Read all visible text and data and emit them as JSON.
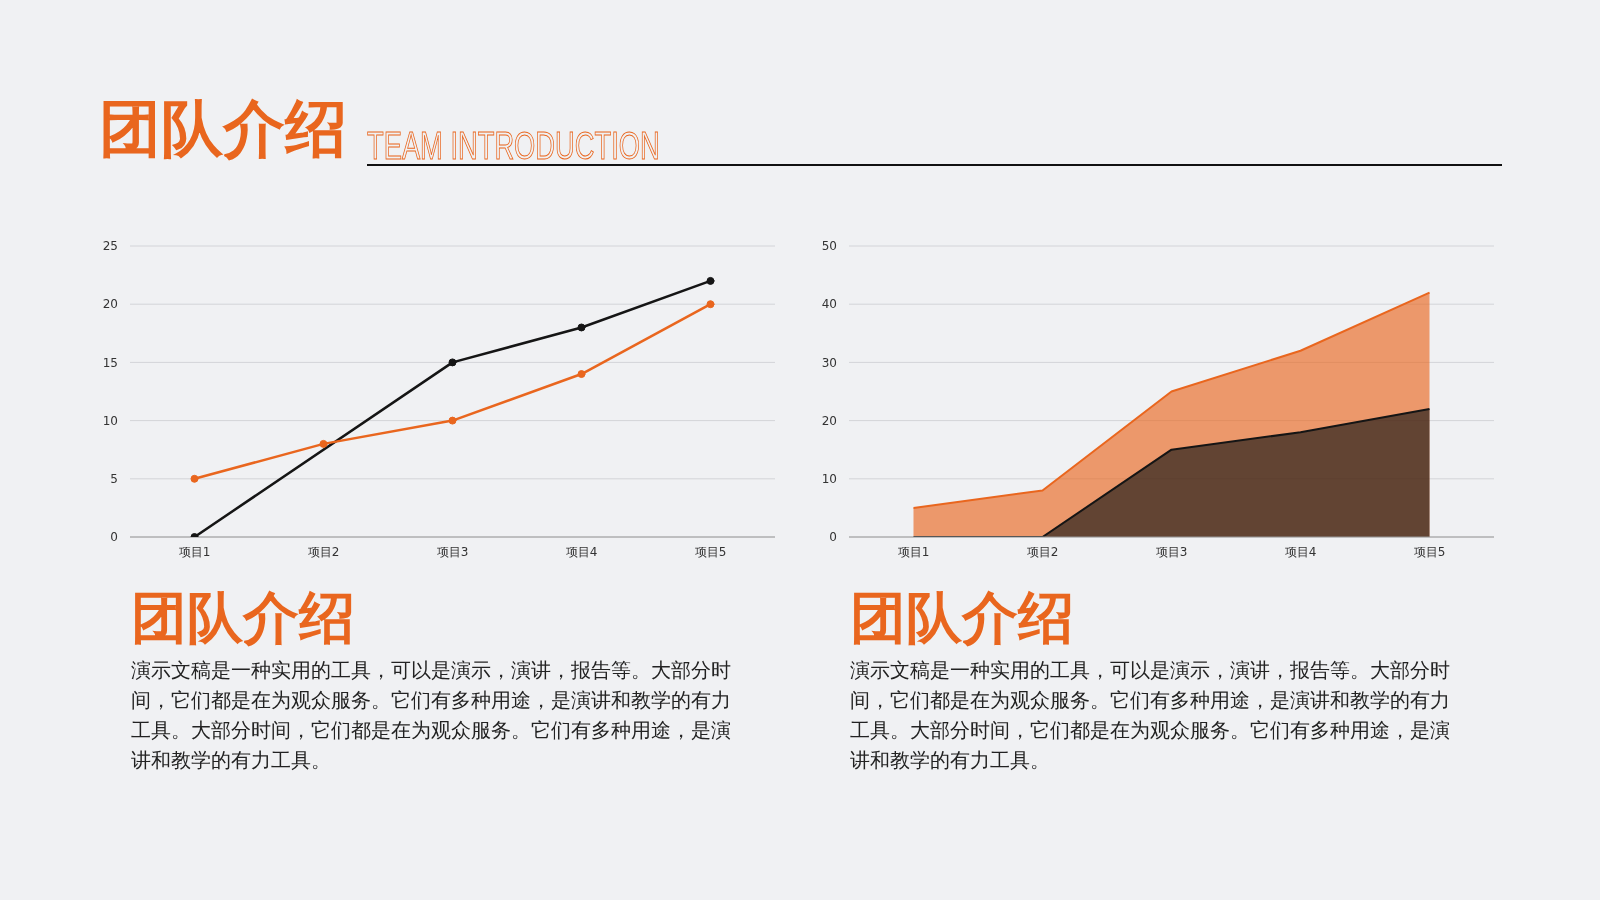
{
  "chart_data": [
    {
      "type": "other",
      "title": "团队介绍",
      "subtitle": "TEAM INTRODUCTION"
    },
    {
      "type": "line",
      "categories": [
        "项目1",
        "项目2",
        "项目3",
        "项目4",
        "项目5"
      ],
      "series": [
        {
          "color": "#151515",
          "values": [
            0,
            null,
            15,
            18,
            22
          ]
        },
        {
          "color": "#e9661e",
          "values": [
            5,
            8,
            10,
            14,
            20
          ]
        }
      ],
      "ylim": [
        0,
        25
      ],
      "yticks": [
        0,
        5,
        10,
        15,
        20,
        25
      ],
      "grid": "y",
      "marker": "circle",
      "annotations": [
        "团队介绍",
        "演示文稿是一种实用的工具，可以是演示，演讲，报告等。大部分时间，它们都是在为观众服务。它们有多种用途，是演讲和教学的有力工具。大部分时间，它们都是在为观众服务。它们有多种用途，是演讲和教学的有力工具。"
      ]
    },
    {
      "type": "area",
      "categories": [
        "项目1",
        "项目2",
        "项目3",
        "项目4",
        "项目5"
      ],
      "series": [
        {
          "color": "#e9661e",
          "values": [
            5,
            8,
            25,
            32,
            42
          ]
        },
        {
          "color": "#151515",
          "values": [
            0,
            0,
            15,
            18,
            22
          ]
        }
      ],
      "ylim": [
        0,
        50
      ],
      "yticks": [
        0,
        10,
        20,
        30,
        40,
        50
      ],
      "grid": "y",
      "annotations": [
        "团队介绍",
        "演示文稿是一种实用的工具，可以是演示，演讲，报告等。大部分时间，它们都是在为观众服务。它们有多种用途，是演讲和教学的有力工具。大部分时间，它们都是在为观众服务。它们有多种用途，是演讲和教学的有力工具。"
      ]
    }
  ]
}
